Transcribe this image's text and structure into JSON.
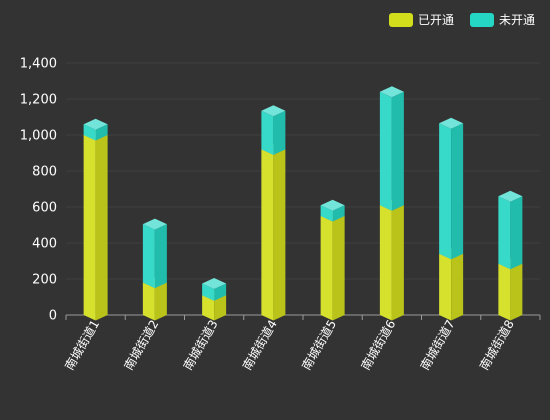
{
  "chart_data": {
    "type": "bar",
    "stacked": true,
    "style": "3d-prism",
    "categories": [
      "南城街道1",
      "南城街道2",
      "南城街道3",
      "南城街道4",
      "南城街道5",
      "南城街道6",
      "南城街道7",
      "南城街道8"
    ],
    "series": [
      {
        "name": "已开通",
        "color": "#d2de1c",
        "values": [
          1000,
          180,
          110,
          920,
          550,
          610,
          340,
          285
        ]
      },
      {
        "name": "未开通",
        "color": "#26d6c4",
        "values": [
          60,
          325,
          65,
          215,
          60,
          630,
          725,
          375
        ]
      }
    ],
    "y_ticks": [
      "0",
      "200",
      "400",
      "600",
      "800",
      "1,000",
      "1,200",
      "1,400"
    ],
    "ylim": [
      0,
      1400
    ],
    "grid": true,
    "legend_position": "top-right",
    "xlabel": "",
    "ylabel": ""
  }
}
